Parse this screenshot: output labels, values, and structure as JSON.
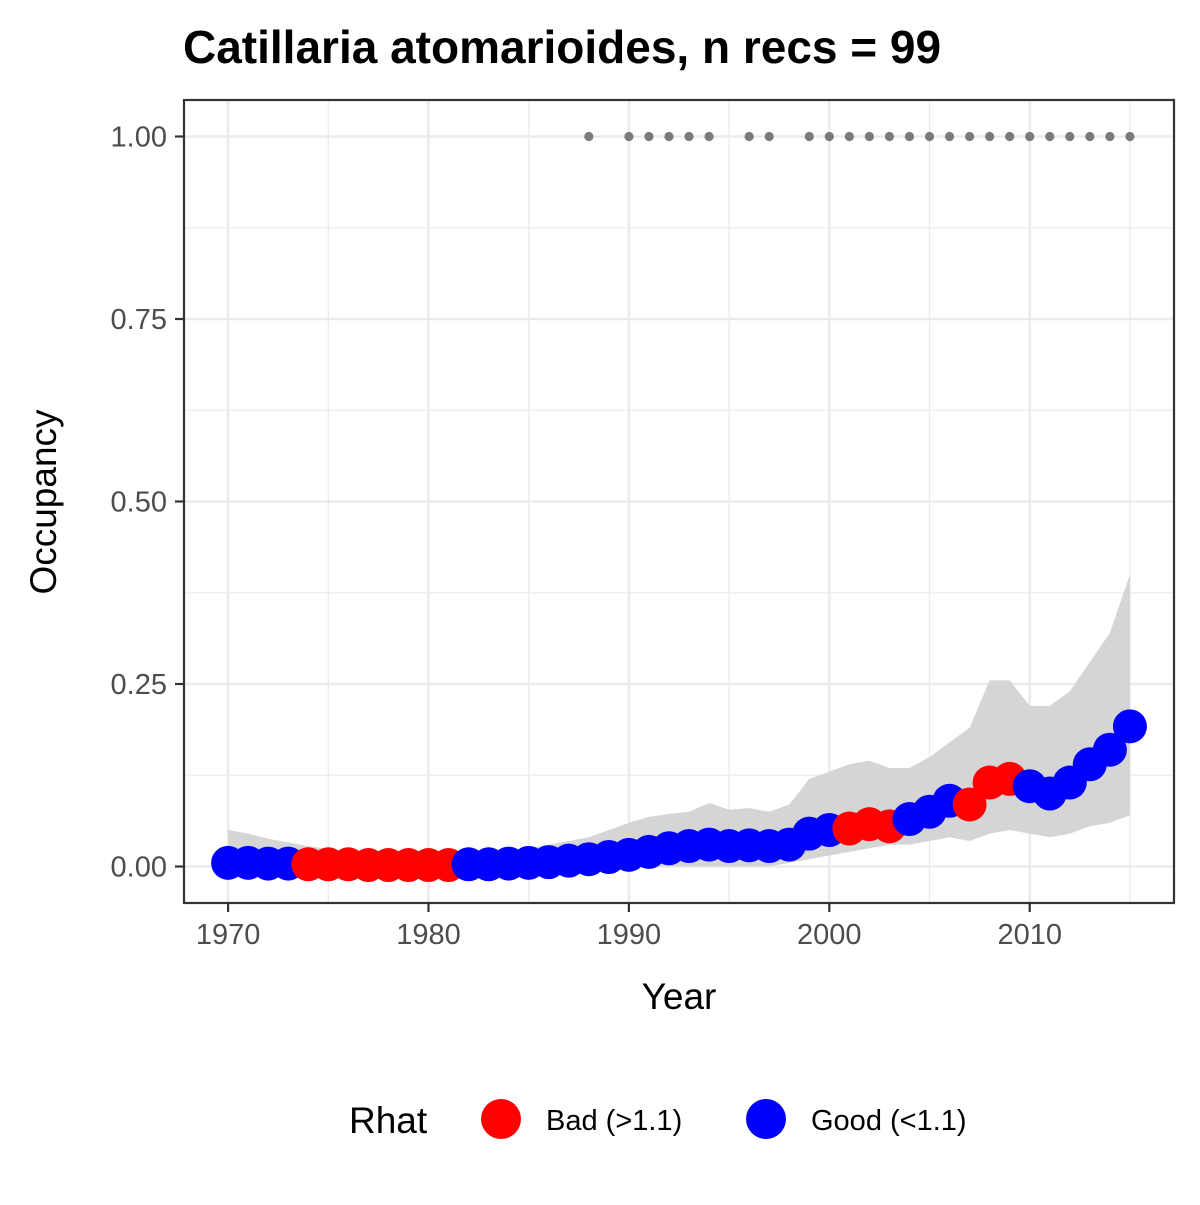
{
  "chart_data": {
    "type": "scatter",
    "title": "Catillaria atomarioides, n recs = 99",
    "xlabel": "Year",
    "ylabel": "Occupancy",
    "xlim": [
      1967.8,
      2017.2
    ],
    "ylim": [
      -0.05,
      1.05
    ],
    "x_ticks": [
      {
        "value": 1970,
        "label": "1970"
      },
      {
        "value": 1980,
        "label": "1980"
      },
      {
        "value": 1990,
        "label": "1990"
      },
      {
        "value": 2000,
        "label": "2000"
      },
      {
        "value": 2010,
        "label": "2010"
      }
    ],
    "y_ticks": [
      {
        "value": 0,
        "label": "0.00"
      },
      {
        "value": 0.25,
        "label": "0.25"
      },
      {
        "value": 0.5,
        "label": "0.50"
      },
      {
        "value": 0.75,
        "label": "0.75"
      },
      {
        "value": 1,
        "label": "1.00"
      }
    ],
    "grid": true,
    "legend": {
      "title": "Rhat",
      "position": "bottom",
      "items": [
        {
          "label": "Bad (>1.1)",
          "color": "#ff0000",
          "key": "bad"
        },
        {
          "label": "Good (<1.1)",
          "color": "#0000ff",
          "key": "good"
        }
      ]
    },
    "colors": {
      "bad": "#ff0000",
      "good": "#0000ff",
      "ribbon": "#d3d3d3",
      "records": "#7a7a7a"
    },
    "years": [
      1970,
      1971,
      1972,
      1973,
      1974,
      1975,
      1976,
      1977,
      1978,
      1979,
      1980,
      1981,
      1982,
      1983,
      1984,
      1985,
      1986,
      1987,
      1988,
      1989,
      1990,
      1991,
      1992,
      1993,
      1994,
      1995,
      1996,
      1997,
      1998,
      1999,
      2000,
      2001,
      2002,
      2003,
      2004,
      2005,
      2006,
      2007,
      2008,
      2009,
      2010,
      2011,
      2012,
      2013,
      2014,
      2015
    ],
    "occupancy": [
      0.005,
      0.005,
      0.004,
      0.004,
      0.003,
      0.003,
      0.003,
      0.002,
      0.002,
      0.002,
      0.002,
      0.002,
      0.003,
      0.003,
      0.004,
      0.005,
      0.006,
      0.008,
      0.01,
      0.013,
      0.016,
      0.02,
      0.025,
      0.028,
      0.03,
      0.028,
      0.029,
      0.028,
      0.03,
      0.045,
      0.05,
      0.052,
      0.058,
      0.055,
      0.065,
      0.075,
      0.09,
      0.085,
      0.115,
      0.12,
      0.11,
      0.1,
      0.115,
      0.14,
      0.16,
      0.192
    ],
    "rhat": [
      "good",
      "good",
      "good",
      "good",
      "bad",
      "bad",
      "bad",
      "bad",
      "bad",
      "bad",
      "bad",
      "bad",
      "good",
      "good",
      "good",
      "good",
      "good",
      "good",
      "good",
      "good",
      "good",
      "good",
      "good",
      "good",
      "good",
      "good",
      "good",
      "good",
      "good",
      "good",
      "good",
      "bad",
      "bad",
      "bad",
      "good",
      "good",
      "good",
      "bad",
      "bad",
      "bad",
      "good",
      "good",
      "good",
      "good",
      "good",
      "good"
    ],
    "ci_lower": [
      0,
      0,
      0,
      0,
      0,
      0,
      0,
      0,
      0,
      0,
      0,
      0,
      0,
      0,
      0,
      0,
      0,
      0,
      0,
      0,
      0,
      0,
      0,
      0,
      0,
      0,
      0,
      0,
      0.005,
      0.01,
      0.015,
      0.02,
      0.025,
      0.03,
      0.03,
      0.035,
      0.04,
      0.035,
      0.045,
      0.05,
      0.045,
      0.04,
      0.045,
      0.055,
      0.06,
      0.07
    ],
    "ci_upper": [
      0.05,
      0.045,
      0.038,
      0.033,
      0.028,
      0.024,
      0.02,
      0.018,
      0.016,
      0.015,
      0.015,
      0.016,
      0.018,
      0.02,
      0.022,
      0.025,
      0.03,
      0.035,
      0.04,
      0.05,
      0.06,
      0.068,
      0.072,
      0.075,
      0.087,
      0.078,
      0.08,
      0.075,
      0.085,
      0.12,
      0.13,
      0.14,
      0.145,
      0.135,
      0.135,
      0.15,
      0.17,
      0.19,
      0.255,
      0.255,
      0.22,
      0.22,
      0.24,
      0.28,
      0.32,
      0.4
    ],
    "record_years": [
      1988,
      1990,
      1991,
      1992,
      1993,
      1994,
      1996,
      1997,
      1999,
      2000,
      2001,
      2002,
      2003,
      2004,
      2005,
      2006,
      2007,
      2008,
      2009,
      2010,
      2011,
      2012,
      2013,
      2014,
      2015
    ],
    "record_value": 1.0
  }
}
